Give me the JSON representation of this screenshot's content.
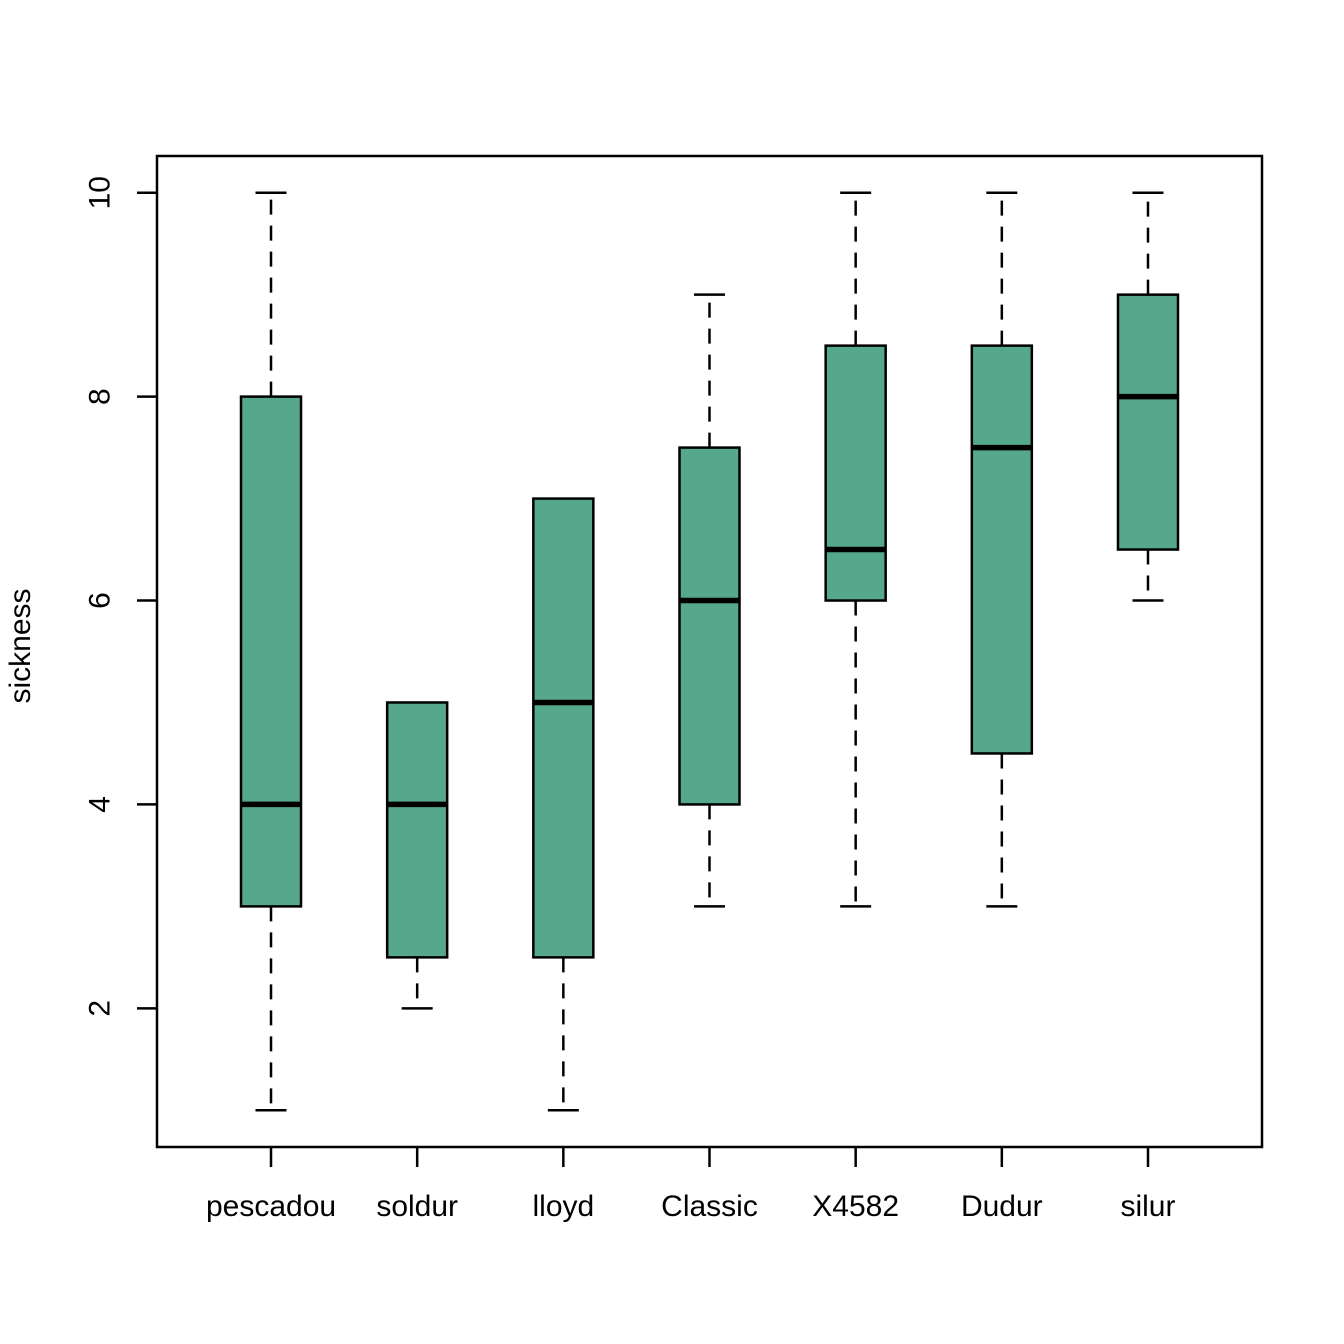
{
  "figure": {
    "background": "#ffffff"
  },
  "chart_data": {
    "type": "box",
    "title": "",
    "xlabel": "",
    "ylabel": "sickness",
    "categories": [
      "pescadou",
      "soldur",
      "lloyd",
      "Classic",
      "X4582",
      "Dudur",
      "silur"
    ],
    "yticks": [
      2,
      4,
      6,
      8,
      10
    ],
    "ylim": [
      0.64,
      10.36
    ],
    "grid": false,
    "legend": false,
    "box_fill": "#55a88c",
    "line_color": "#000000",
    "series": [
      {
        "name": "pescadou",
        "whisker_low": 1,
        "q1": 3,
        "median": 4,
        "q3": 8,
        "whisker_high": 10
      },
      {
        "name": "soldur",
        "whisker_low": 2,
        "q1": 2.5,
        "median": 4,
        "q3": 5,
        "whisker_high": 5
      },
      {
        "name": "lloyd",
        "whisker_low": 1,
        "q1": 2.5,
        "median": 5,
        "q3": 7,
        "whisker_high": 7
      },
      {
        "name": "Classic",
        "whisker_low": 3,
        "q1": 4,
        "median": 6,
        "q3": 7.5,
        "whisker_high": 9
      },
      {
        "name": "X4582",
        "whisker_low": 3,
        "q1": 6,
        "median": 6.5,
        "q3": 8.5,
        "whisker_high": 10
      },
      {
        "name": "Dudur",
        "whisker_low": 3,
        "q1": 4.5,
        "median": 7.5,
        "q3": 8.5,
        "whisker_high": 10
      },
      {
        "name": "silur",
        "whisker_low": 6,
        "q1": 6.5,
        "median": 8,
        "q3": 9,
        "whisker_high": 10
      }
    ]
  }
}
